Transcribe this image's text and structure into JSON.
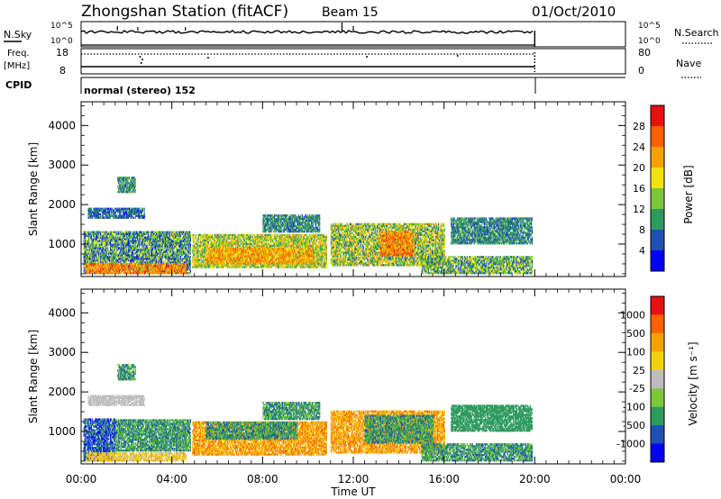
{
  "header": {
    "title": "Zhongshan Station (fitACF)",
    "beam": "Beam 15",
    "date": "01/Oct/2010"
  },
  "status_panels": {
    "nsky_label": "N.Sky",
    "nsearch_label": "N.Search",
    "freq_label_top": "Freq.",
    "freq_label_bottom": "[MHz]",
    "nave_label": "Nave",
    "cpid_label": "CPID",
    "nsky_ticks": [
      "10^5",
      "10^0"
    ],
    "freq_ticks": [
      "18",
      "8"
    ],
    "nave_ticks": [
      "80",
      "0"
    ],
    "mode_text": "normal (stereo) 152"
  },
  "colors": {
    "power": [
      "#0000ff",
      "#1e4fb4",
      "#2e9b5e",
      "#7cc83a",
      "#f2e20a",
      "#f5a100",
      "#ff6000",
      "#e81010"
    ],
    "velocity": [
      "#e81010",
      "#ff6000",
      "#f5a100",
      "#f2d10a",
      "#bdbdbd",
      "#7cc83a",
      "#2e9b5e",
      "#1e4fb4",
      "#0000ff"
    ]
  },
  "chart_data": [
    {
      "type": "heatmap",
      "panel": "power",
      "ylabel": "Slant Range [km]",
      "xlabel": "",
      "x_ticks": [
        "00:00",
        "04:00",
        "08:00",
        "12:00",
        "16:00",
        "20:00",
        "00:00"
      ],
      "y_ticks": [
        "1000",
        "2000",
        "3000",
        "4000"
      ],
      "xlim": [
        0,
        24
      ],
      "ylim": [
        180,
        4600
      ],
      "colorbar_label": "Power [dB]",
      "colorbar_ticks": [
        "4",
        "8",
        "12",
        "16",
        "20",
        "24",
        "28"
      ],
      "colorbar_range": [
        0,
        32
      ],
      "echo_regions": [
        {
          "t0": 0.1,
          "t1": 4.8,
          "r0": 250,
          "r1": 1300,
          "level": 10,
          "spread": 8
        },
        {
          "t0": 0.2,
          "t1": 4.6,
          "r0": 250,
          "r1": 500,
          "level": 24,
          "spread": 5
        },
        {
          "t0": 0.3,
          "t1": 2.8,
          "r0": 1650,
          "r1": 1900,
          "level": 7,
          "spread": 4
        },
        {
          "t0": 1.6,
          "t1": 2.4,
          "r0": 2300,
          "r1": 2700,
          "level": 10,
          "spread": 4
        },
        {
          "t0": 4.9,
          "t1": 10.8,
          "r0": 400,
          "r1": 1250,
          "level": 16,
          "spread": 8
        },
        {
          "t0": 5.5,
          "t1": 10.2,
          "r0": 500,
          "r1": 900,
          "level": 22,
          "spread": 6
        },
        {
          "t0": 8.0,
          "t1": 10.5,
          "r0": 1300,
          "r1": 1750,
          "level": 9,
          "spread": 4
        },
        {
          "t0": 11.0,
          "t1": 16.0,
          "r0": 450,
          "r1": 1500,
          "level": 15,
          "spread": 9
        },
        {
          "t0": 13.2,
          "t1": 14.6,
          "r0": 700,
          "r1": 1300,
          "level": 24,
          "spread": 5
        },
        {
          "t0": 15.0,
          "t1": 19.9,
          "r0": 250,
          "r1": 700,
          "level": 12,
          "spread": 8
        },
        {
          "t0": 16.3,
          "t1": 19.9,
          "r0": 1000,
          "r1": 1650,
          "level": 9,
          "spread": 4
        }
      ]
    },
    {
      "type": "heatmap",
      "panel": "velocity",
      "ylabel": "Slant Range [km]",
      "xlabel": "Time UT",
      "x_ticks": [
        "00:00",
        "04:00",
        "08:00",
        "12:00",
        "16:00",
        "20:00",
        "00:00"
      ],
      "y_ticks": [
        "1000",
        "2000",
        "3000",
        "4000"
      ],
      "xlim": [
        0,
        24
      ],
      "ylim": [
        180,
        4600
      ],
      "colorbar_label": "Velocity [m s⁻¹]",
      "colorbar_ticks": [
        "1000",
        "500",
        "100",
        "25",
        "-25",
        "-100",
        "-500",
        "-1000"
      ],
      "echo_regions": [
        {
          "t0": 0.1,
          "t1": 1.5,
          "r0": 250,
          "r1": 1300,
          "class": 7,
          "spread": 1
        },
        {
          "t0": 1.5,
          "t1": 4.8,
          "r0": 500,
          "r1": 1300,
          "class": 6,
          "spread": 1
        },
        {
          "t0": 0.2,
          "t1": 4.6,
          "r0": 250,
          "r1": 450,
          "class": 3,
          "spread": 1
        },
        {
          "t0": 0.3,
          "t1": 2.8,
          "r0": 1650,
          "r1": 1900,
          "class": 4,
          "spread": 0
        },
        {
          "t0": 1.6,
          "t1": 2.4,
          "r0": 2300,
          "r1": 2700,
          "class": 6,
          "spread": 1
        },
        {
          "t0": 4.9,
          "t1": 10.8,
          "r0": 400,
          "r1": 1250,
          "class": 2,
          "spread": 1
        },
        {
          "t0": 5.5,
          "t1": 9.5,
          "r0": 800,
          "r1": 1250,
          "class": 6,
          "spread": 1
        },
        {
          "t0": 8.0,
          "t1": 10.5,
          "r0": 1300,
          "r1": 1750,
          "class": 6,
          "spread": 1
        },
        {
          "t0": 11.0,
          "t1": 16.0,
          "r0": 450,
          "r1": 1500,
          "class": 2,
          "spread": 1
        },
        {
          "t0": 12.5,
          "t1": 15.5,
          "r0": 700,
          "r1": 1400,
          "class": 6,
          "spread": 1
        },
        {
          "t0": 15.0,
          "t1": 19.9,
          "r0": 250,
          "r1": 700,
          "class": 6,
          "spread": 1
        },
        {
          "t0": 16.3,
          "t1": 19.9,
          "r0": 1000,
          "r1": 1650,
          "class": 6,
          "spread": 0
        }
      ]
    }
  ]
}
